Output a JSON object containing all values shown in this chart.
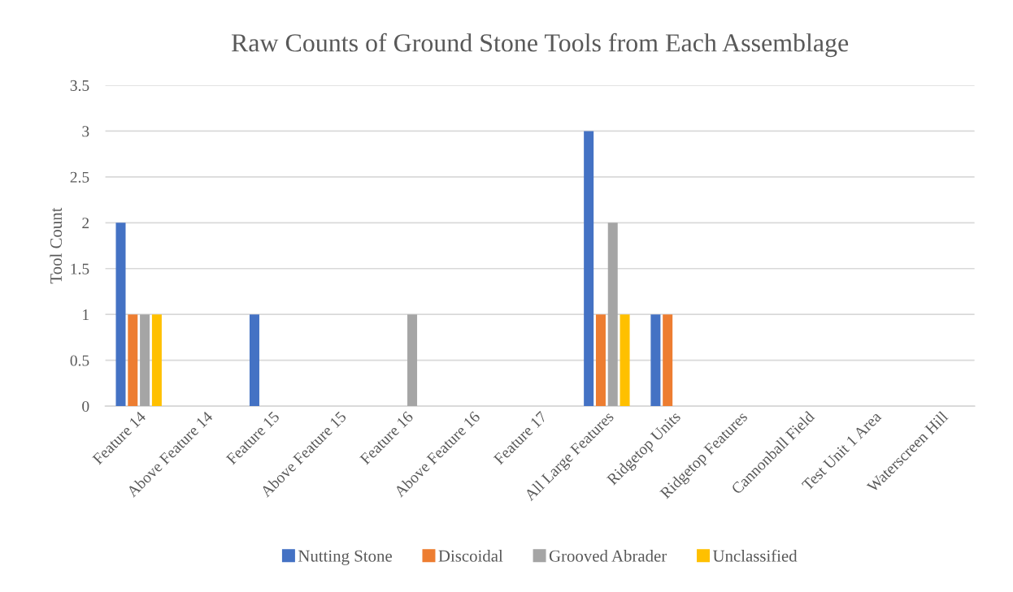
{
  "chart_data": {
    "type": "bar",
    "title": "Raw Counts of Ground Stone Tools from Each Assemblage",
    "ylabel": "Tool Count",
    "categories": [
      "Feature 14",
      "Above Feature 14",
      "Feature 15",
      "Above Feature 15",
      "Feature 16",
      "Above Feature 16",
      "Feature 17",
      "All Large Features",
      "Ridgetop Units",
      "Ridgetop Features",
      "Cannonball Field",
      "Test Unit 1 Area",
      "Waterscreen Hill"
    ],
    "series": [
      {
        "name": "Nutting Stone",
        "color": "#4472c4",
        "values": [
          2,
          0,
          1,
          0,
          0,
          0,
          0,
          3,
          1,
          0,
          0,
          0,
          0
        ]
      },
      {
        "name": "Discoidal",
        "color": "#ed7d31",
        "values": [
          1,
          0,
          0,
          0,
          0,
          0,
          0,
          1,
          1,
          0,
          0,
          0,
          0
        ]
      },
      {
        "name": "Grooved Abrader",
        "color": "#a5a5a5",
        "values": [
          1,
          0,
          0,
          0,
          1,
          0,
          0,
          2,
          0,
          0,
          0,
          0,
          0
        ]
      },
      {
        "name": "Unclassified",
        "color": "#ffc000",
        "values": [
          1,
          0,
          0,
          0,
          0,
          0,
          0,
          1,
          0,
          0,
          0,
          0,
          0
        ]
      }
    ],
    "ylim": [
      0,
      3.5
    ],
    "yticks": [
      0,
      0.5,
      1,
      1.5,
      2,
      2.5,
      3,
      3.5
    ],
    "grid": "y",
    "legend": "bottom"
  }
}
